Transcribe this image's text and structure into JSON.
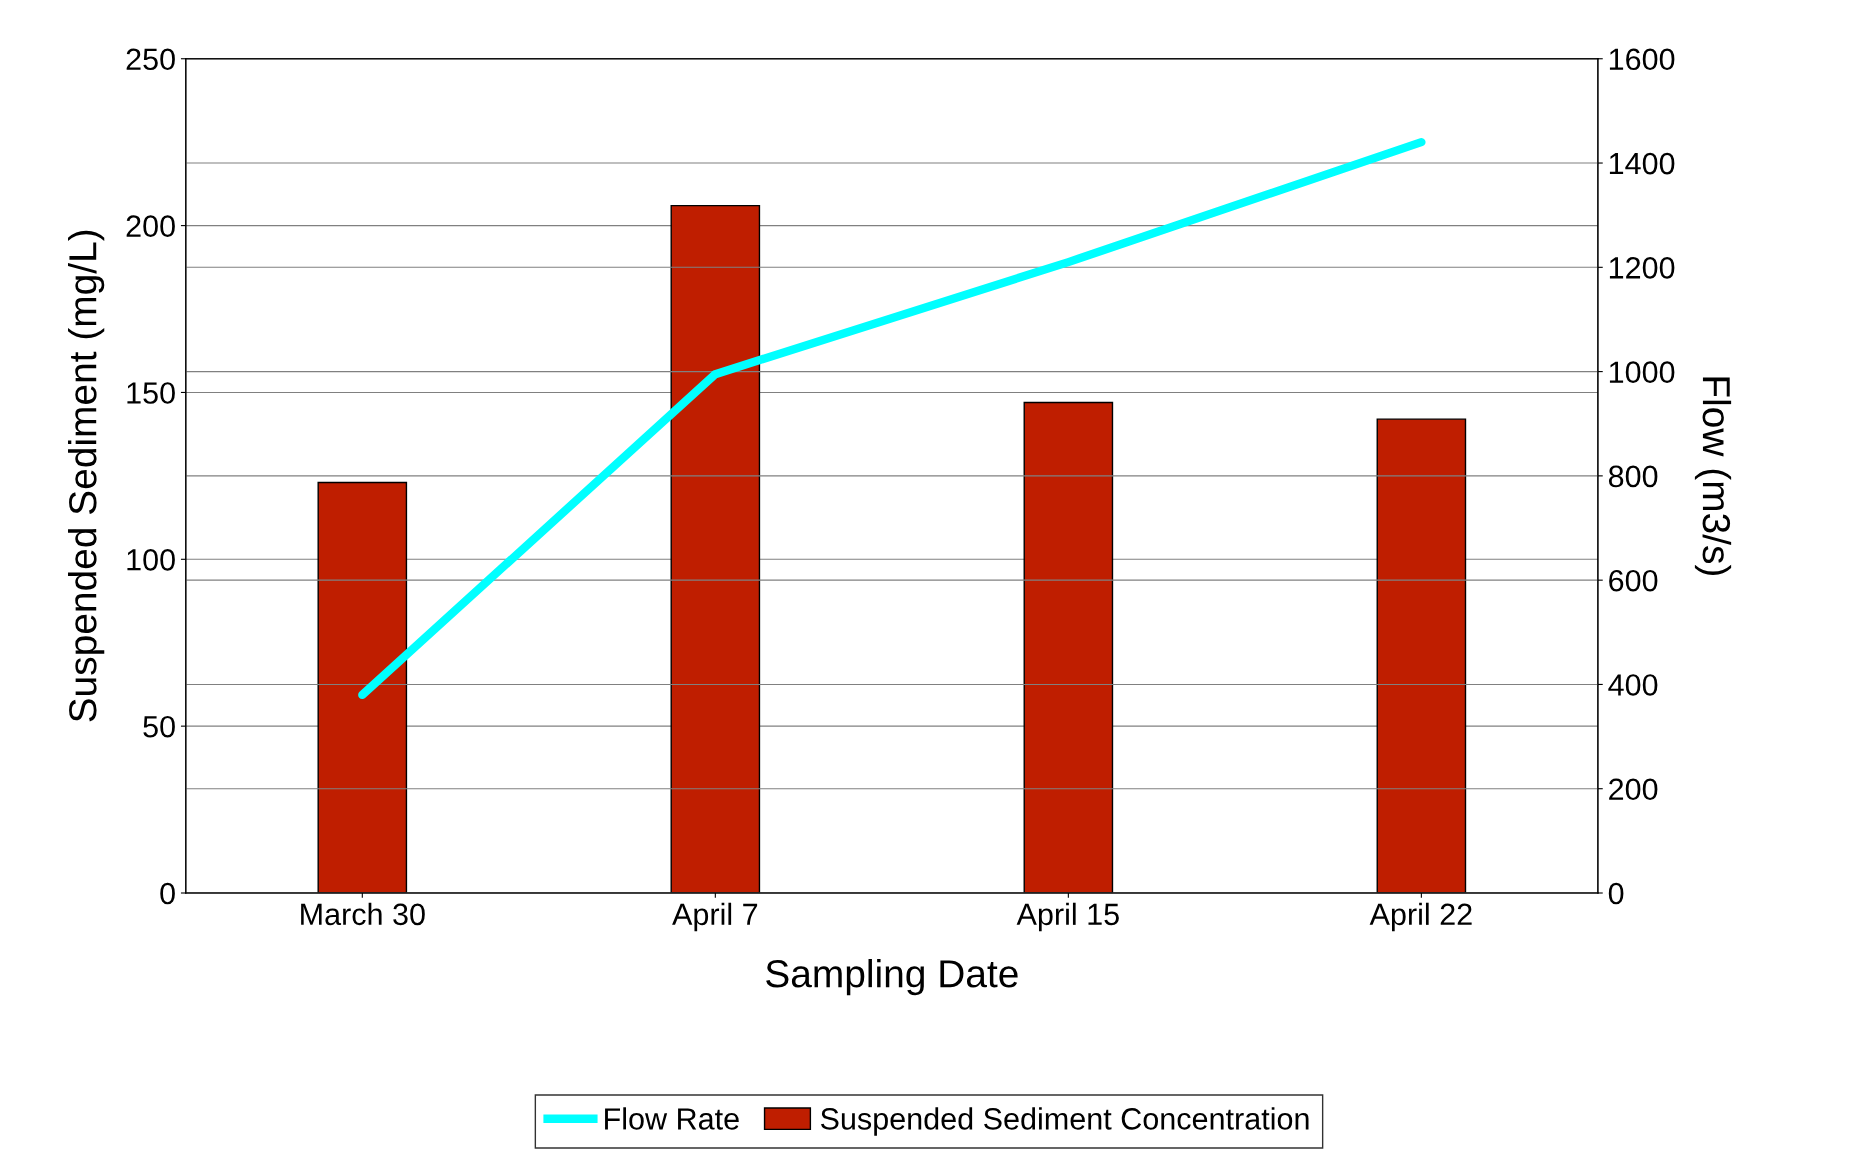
{
  "chart_data": {
    "type": "bar",
    "xlabel": "Sampling Date",
    "ylabel": "Suspended Sediment (mg/L)",
    "y2label": "Flow (m3/s)",
    "categories": [
      "March 30",
      "April 7",
      "April 15",
      "April 22"
    ],
    "series": [
      {
        "name": "Flow Rate",
        "type": "line",
        "axis": "y2",
        "color": "#00ffff",
        "values": [
          380,
          995,
          1210,
          1440
        ]
      },
      {
        "name": "Suspended Sediment Concentration",
        "color": "#bf1e00",
        "values": [
          123,
          206,
          147,
          142
        ]
      }
    ],
    "ylim": [
      0,
      250
    ],
    "yticks": [
      0,
      50,
      100,
      150,
      200,
      250
    ],
    "y2lim": [
      0,
      1600
    ],
    "y2ticks": [
      0,
      200,
      400,
      600,
      800,
      1000,
      1200,
      1400,
      1600
    ],
    "grid": "y",
    "legend": "bottom",
    "marker": "none",
    "line_style": "solid"
  }
}
